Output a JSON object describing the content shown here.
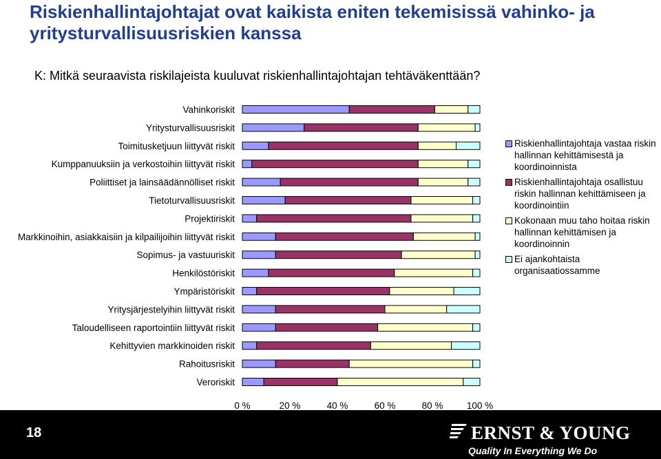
{
  "title": "Riskienhallintajohtajat ovat kaikista eniten tekemisissä vahinko- ja yritysturvallisuusriskien kanssa",
  "question": "K: Mitkä seuraavista riskilajeista kuuluvat riskienhallintajohtajan tehtäväkenttään?",
  "page_number": "18",
  "logo": {
    "name": "ERNST & YOUNG",
    "tagline": "Quality In Everything We Do"
  },
  "colors": {
    "title": "#1f3f94",
    "footer": "#000000"
  },
  "chart_data": {
    "type": "bar",
    "orientation": "horizontal",
    "stacked": true,
    "percent": true,
    "xlim": [
      0,
      100
    ],
    "xticks": [
      "0 %",
      "20 %",
      "40 %",
      "60 %",
      "80 %",
      "100 %"
    ],
    "grid": false,
    "legend_position": "right",
    "categories": [
      "Vahinkoriskit",
      "Yritysturvallisuusriskit",
      "Toimitusketjuun liittyvät riskit",
      "Kumppanuuksiin ja verkostoihin liittyvät riskit",
      "Poliittiset ja lainsäädännölliset riskit",
      "Tietoturvallisuusriskit",
      "Projektiriskit",
      "Markkinoihin, asiakkaisiin ja kilpailijoihin liittyvät riskit",
      "Sopimus- ja vastuuriskit",
      "Henkilöstöriskit",
      "Ympäristöriskit",
      "Yritysjärjestelyihin liittyvät riskit",
      "Taloudelliseen raportointiin liittyvät riskit",
      "Kehittyvien markkinoiden riskit",
      "Rahoitusriskit",
      "Veroriskit"
    ],
    "series": [
      {
        "name": "Riskienhallintajohtaja vastaa riskin hallinnan kehittämisestä ja koordinoinnista",
        "color": "#9999ff",
        "values": [
          45,
          26,
          11,
          4,
          16,
          18,
          6,
          14,
          14,
          11,
          6,
          14,
          14,
          6,
          14,
          9
        ]
      },
      {
        "name": "Riskienhallintajohtaja osallistuu riskin hallinnan kehittämiseen ja koordinointiin",
        "color": "#993366",
        "values": [
          36,
          48,
          63,
          70,
          58,
          53,
          65,
          58,
          53,
          53,
          56,
          46,
          43,
          48,
          31,
          31
        ]
      },
      {
        "name": "Kokonaan muu taho hoitaa riskin hallinnan kehittämisen ja koordinoinnin",
        "color": "#ffffcc",
        "values": [
          14,
          24,
          16,
          21,
          21,
          26,
          26,
          26,
          31,
          33,
          27,
          26,
          40,
          34,
          52,
          53
        ]
      },
      {
        "name": "Ei ajankohtaista organisaatiossamme",
        "color": "#ccffff",
        "values": [
          5,
          2,
          10,
          5,
          5,
          3,
          3,
          2,
          2,
          3,
          11,
          14,
          3,
          12,
          3,
          7
        ]
      }
    ]
  }
}
